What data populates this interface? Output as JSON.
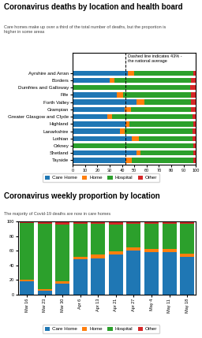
{
  "chart_data": [
    {
      "type": "bar",
      "orientation": "horizontal",
      "stacked": true,
      "title": "Coronavirus deaths by location and health board",
      "subtitle": "Care homes make up over a third of the total number of deaths, but the proportion is\nhigher in some areas",
      "categories": [
        "Ayrshire and Arran",
        "Borders",
        "Dumfries and Galloway",
        "Fife",
        "Forth Valley",
        "Grampian",
        "Greater Glasgow and Clyde",
        "Highland",
        "Lanarkshire",
        "Lothian",
        "Orkney",
        "Shetland",
        "Tayside"
      ],
      "series": [
        {
          "name": "Care Home",
          "values": [
            45,
            30,
            0,
            36,
            52,
            42,
            28,
            43,
            38,
            48,
            0,
            52,
            43
          ]
        },
        {
          "name": "Home",
          "values": [
            5,
            4,
            0,
            5,
            6,
            5,
            4,
            3,
            4,
            6,
            0,
            3,
            5
          ]
        },
        {
          "name": "Hospital",
          "values": [
            48,
            62,
            95,
            55,
            38,
            49,
            65,
            52,
            55,
            43,
            98,
            43,
            50
          ]
        },
        {
          "name": "Other",
          "values": [
            2,
            4,
            5,
            4,
            4,
            4,
            3,
            2,
            3,
            3,
            2,
            2,
            2
          ]
        }
      ],
      "xlim": [
        0,
        100
      ],
      "xticks": [
        0,
        10,
        20,
        30,
        40,
        50,
        60,
        70,
        80,
        90,
        100
      ],
      "reference_line": {
        "value": 43,
        "label": "Dashed line indicates 43% -\nthe national average"
      },
      "legend": "lower center"
    },
    {
      "type": "bar",
      "stacked": true,
      "title": "Coronavirus weekly proportion by location",
      "subtitle": "The majority of Covid-19 deaths are now in care homes",
      "categories": [
        "Mar 16",
        "Mar 23",
        "Mar 30",
        "Apr 6",
        "Apr 13",
        "Apr 21",
        "Apr 27",
        "May 4",
        "May 11",
        "May 18"
      ],
      "series": [
        {
          "name": "Care Home",
          "values": [
            18,
            5,
            15,
            48,
            50,
            55,
            60,
            58,
            58,
            52
          ]
        },
        {
          "name": "Home",
          "values": [
            2,
            2,
            3,
            4,
            5,
            4,
            4,
            4,
            4,
            4
          ]
        },
        {
          "name": "Hospital",
          "values": [
            78,
            90,
            78,
            45,
            42,
            37,
            33,
            35,
            35,
            41
          ]
        },
        {
          "name": "Other",
          "values": [
            2,
            3,
            4,
            3,
            3,
            4,
            3,
            3,
            3,
            3
          ]
        }
      ],
      "ylim": [
        0,
        100
      ],
      "yticks": [
        0,
        20,
        40,
        60,
        80,
        100
      ],
      "legend": "lower center"
    }
  ]
}
